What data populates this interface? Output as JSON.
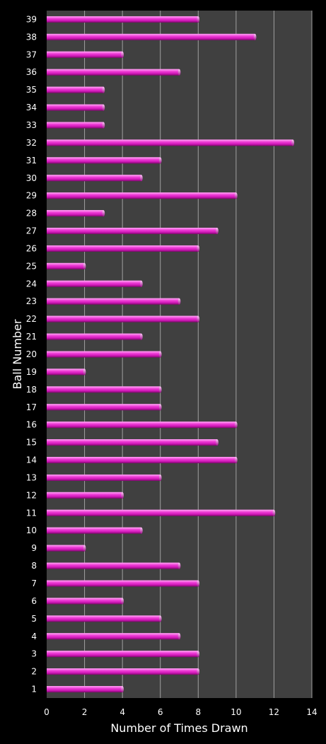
{
  "chart_data": {
    "type": "bar",
    "orientation": "horizontal",
    "title": "",
    "xlabel": "Number of Times Drawn",
    "ylabel": "Ball Number",
    "xlim": [
      0,
      14
    ],
    "xticks": [
      0,
      2,
      4,
      6,
      8,
      10,
      12,
      14
    ],
    "grid": "vertical",
    "categories": [
      "1",
      "2",
      "3",
      "4",
      "5",
      "6",
      "7",
      "8",
      "9",
      "10",
      "11",
      "12",
      "13",
      "14",
      "15",
      "16",
      "17",
      "18",
      "19",
      "20",
      "21",
      "22",
      "23",
      "24",
      "25",
      "26",
      "27",
      "28",
      "29",
      "30",
      "31",
      "32",
      "33",
      "34",
      "35",
      "36",
      "37",
      "38",
      "39"
    ],
    "values": [
      4,
      8,
      8,
      7,
      6,
      4,
      8,
      7,
      2,
      5,
      12,
      4,
      6,
      10,
      9,
      10,
      6,
      6,
      2,
      6,
      5,
      8,
      7,
      5,
      2,
      8,
      9,
      3,
      10,
      5,
      6,
      13,
      3,
      3,
      3,
      7,
      4,
      11,
      8
    ],
    "colors": {
      "background": "#000000",
      "plot_area": "#404040",
      "bar": "#e020c0",
      "bar_highlight": "#ff8ef0",
      "bar_shadow": "#8a0a78",
      "gridline": "#a0a0a0",
      "text": "#ffffff"
    }
  }
}
